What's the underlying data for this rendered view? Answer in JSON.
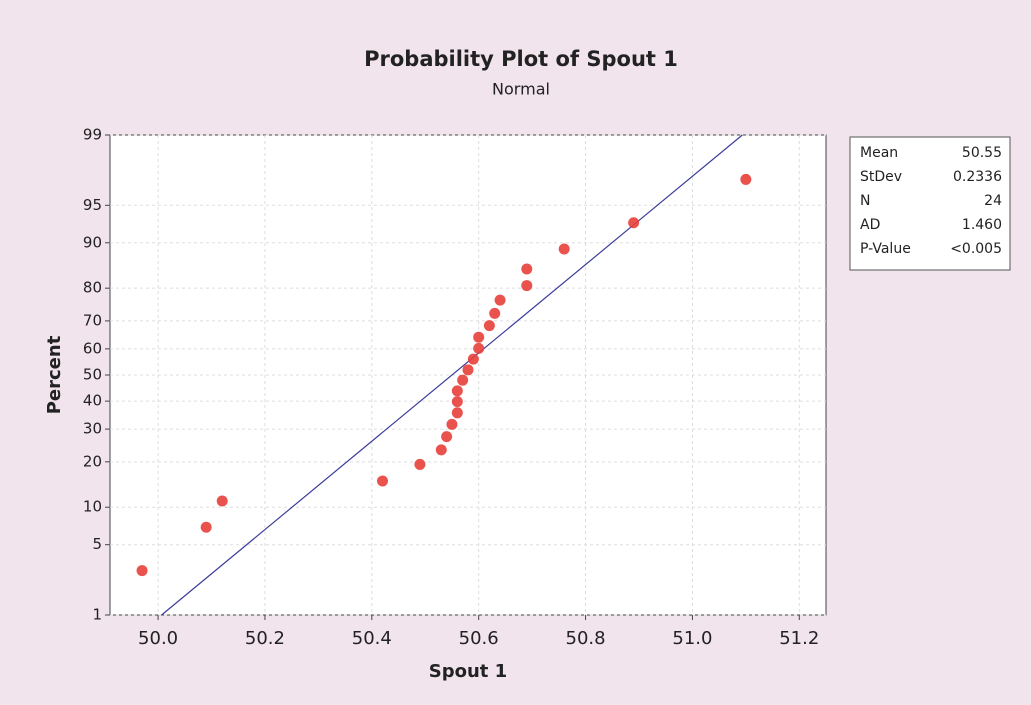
{
  "chart_data": {
    "type": "probability",
    "title": "Probability Plot of Spout 1",
    "subtitle": "Normal",
    "x_label": "Spout 1",
    "y_label": "Percent",
    "yscale": "normal",
    "x": [
      49.97,
      50.09,
      50.12,
      50.42,
      50.49,
      50.53,
      50.54,
      50.55,
      50.56,
      50.56,
      50.56,
      50.57,
      50.58,
      50.59,
      50.6,
      50.6,
      50.62,
      50.63,
      50.64,
      50.69,
      50.69,
      50.76,
      50.89,
      51.1
    ],
    "values": [
      2.9,
      7.0,
      11.1,
      15.2,
      19.3,
      23.4,
      27.5,
      31.6,
      35.7,
      39.8,
      43.9,
      48.0,
      52.0,
      56.1,
      60.2,
      64.3,
      68.4,
      72.5,
      76.6,
      80.7,
      84.8,
      88.9,
      93.0,
      97.1
    ],
    "color": "#e8403a",
    "fit_color": "#3c3c9c",
    "xlim": [
      49.91,
      51.25
    ],
    "xticks": [
      {
        "value": 50,
        "label": "50.0"
      },
      50.2,
      50.4,
      50.6,
      50.8,
      {
        "value": 51,
        "label": "51.0"
      },
      51.2
    ],
    "ylim": [
      1,
      99
    ],
    "yticks": [
      1,
      5,
      10,
      20,
      30,
      40,
      50,
      60,
      70,
      80,
      90,
      95,
      99
    ],
    "grid": true,
    "stats": [
      {
        "label": "Mean",
        "value": 50.55
      },
      {
        "label": "StDev",
        "value": 0.2336
      },
      {
        "label": "N",
        "value": 24
      },
      {
        "label": "AD",
        "value": "1.460"
      },
      {
        "label": "P-Value",
        "value": "<0.005"
      }
    ]
  }
}
